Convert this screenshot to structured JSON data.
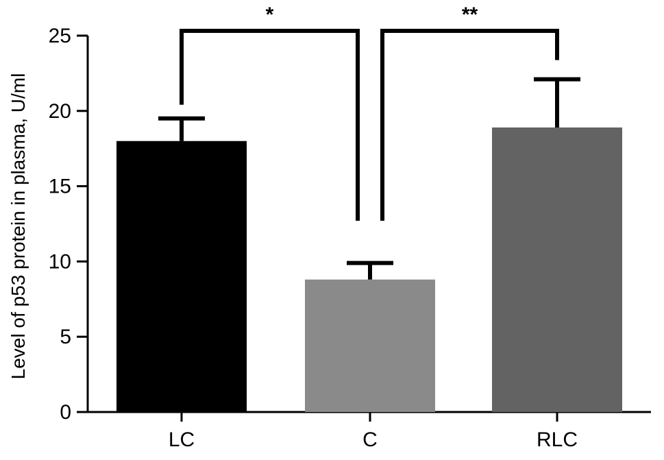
{
  "chart_data": {
    "type": "bar",
    "title": "",
    "xlabel": "",
    "ylabel": "Level of p53 protein in plasma, U/ml",
    "ylim": [
      0,
      25
    ],
    "yticks": [
      0,
      5,
      10,
      15,
      20,
      25
    ],
    "categories": [
      "LC",
      "C",
      "RLC"
    ],
    "values": [
      18.0,
      8.8,
      18.9
    ],
    "errors": [
      1.5,
      1.1,
      3.2
    ],
    "colors": [
      "#000000",
      "#8a8a8a",
      "#636363"
    ],
    "grid": false,
    "legend": "none",
    "significance": [
      {
        "from": 0,
        "to": 1,
        "label": "*"
      },
      {
        "from": 1,
        "to": 2,
        "label": "**"
      }
    ]
  }
}
